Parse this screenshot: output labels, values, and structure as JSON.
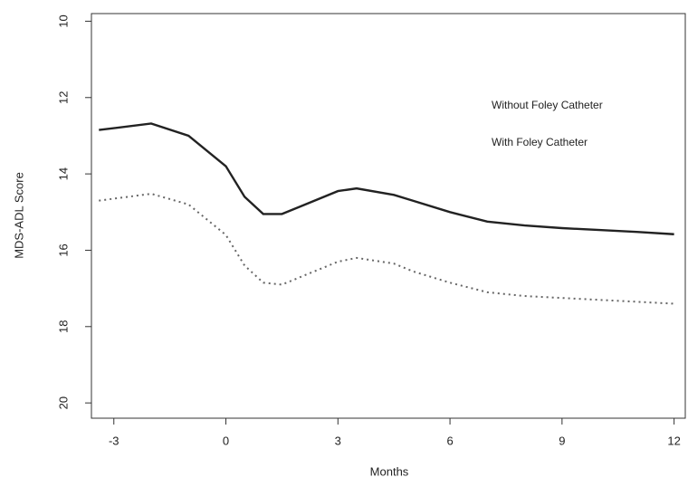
{
  "chart_data": {
    "type": "line",
    "x_label": "Months",
    "y_label": "MDS-ADL Score",
    "x": [
      -3.4,
      -2,
      -1,
      0,
      0.5,
      1,
      1.5,
      2,
      3,
      3.5,
      4.5,
      5,
      6,
      7,
      8,
      9,
      10,
      11,
      12
    ],
    "series": [
      {
        "name": "Without Foley Catheter",
        "color": "#222222",
        "dash": "solid",
        "values": [
          12.85,
          12.68,
          13.0,
          13.8,
          14.6,
          15.05,
          15.05,
          14.85,
          14.45,
          14.38,
          14.55,
          14.7,
          15.0,
          15.25,
          15.35,
          15.42,
          15.47,
          15.52,
          15.58
        ]
      },
      {
        "name": "With Foley Catheter",
        "color": "#666666",
        "dash": "dotted",
        "values": [
          14.7,
          14.52,
          14.8,
          15.6,
          16.4,
          16.85,
          16.9,
          16.7,
          16.3,
          16.2,
          16.35,
          16.55,
          16.85,
          17.1,
          17.2,
          17.25,
          17.3,
          17.35,
          17.4
        ]
      }
    ],
    "xlim": [
      -3.6,
      12.3
    ],
    "xticks": [
      -3,
      0,
      3,
      6,
      9,
      12
    ],
    "ylim": [
      20.4,
      9.8
    ],
    "yticks": [
      10,
      12,
      14,
      16,
      18,
      20
    ],
    "grid": false
  }
}
